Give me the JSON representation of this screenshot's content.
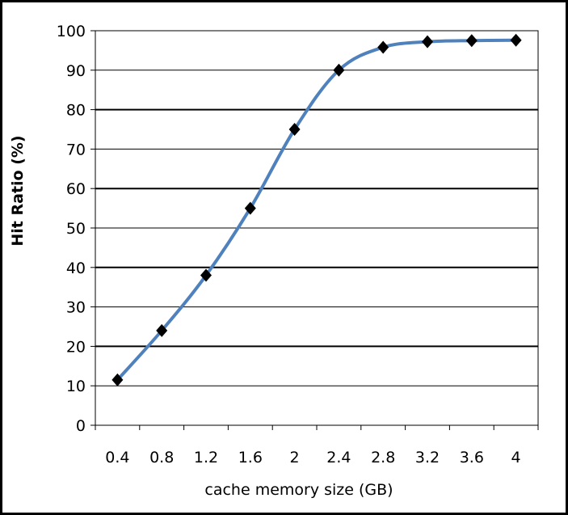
{
  "chart_data": {
    "type": "line",
    "title": "",
    "xlabel": "cache memory size (GB)",
    "ylabel": "Hit Ratio (%)",
    "categories": [
      "0.4",
      "0.8",
      "1.2",
      "1.6",
      "2",
      "2.4",
      "2.8",
      "3.2",
      "3.6",
      "4"
    ],
    "y_ticks": [
      "0",
      "10",
      "20",
      "30",
      "40",
      "50",
      "60",
      "70",
      "80",
      "90",
      "100"
    ],
    "ylim": [
      0,
      100
    ],
    "grid": true,
    "legend": "none",
    "series": [
      {
        "values": [
          11.5,
          24,
          38,
          55,
          75,
          90,
          95.8,
          97.2,
          97.5,
          97.6
        ],
        "line_color": "#4f81bd",
        "marker": "diamond",
        "marker_color": "#000000"
      }
    ]
  }
}
